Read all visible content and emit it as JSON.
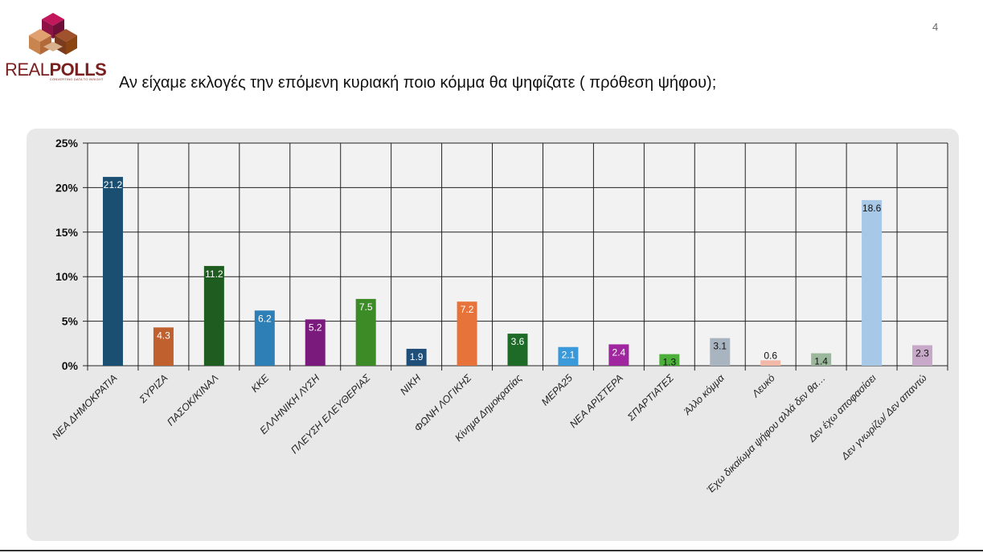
{
  "page_number": "4",
  "logo": {
    "text_light": "REAL",
    "text_bold": "POLLS",
    "tagline": "CONVERTING DATA TO INSIGHT"
  },
  "question": "Αν είχαμε εκλογές την επόμενη κυριακή ποιο κόμμα θα ψηφίζατε ( πρόθεση ψήφου);",
  "chart_data": {
    "type": "bar",
    "title": "",
    "xlabel": "",
    "ylabel": "",
    "ylim": [
      0,
      25
    ],
    "yticks": [
      "0%",
      "5%",
      "10%",
      "15%",
      "20%",
      "25%"
    ],
    "grid": true,
    "legend": "none",
    "categories": [
      "ΝΕΑ ΔΗΜΟΚΡΑΤΙΑ",
      "ΣΥΡΙΖΑ",
      "ΠΑΣΟΚ/ΚΙΝΑΛ",
      "ΚΚΕ",
      "ΕΛΛΗΝΙΚΗ ΛΥΣΗ",
      "ΠΛΕΥΣΗ ΕΛΕΥΘΕΡΙΑΣ",
      "ΝΙΚΗ",
      "ΦΩΝΗ ΛΟΓΙΚΗΣ",
      "Κίνημα Δημοκρατίας",
      "ΜΕΡΑ25",
      "ΝΕΑ ΑΡΙΣΤΕΡΑ",
      "ΣΠΑΡΤΙΑΤΕΣ",
      "Άλλο κόμμα",
      "Λευκό",
      "Έχω δικαίωμα ψήφου αλλά δεν θα…",
      "Δεν έχω αποφασίσει",
      "Δεν γνωρίζω/ Δεν απαντώ"
    ],
    "values": [
      21.2,
      4.3,
      11.2,
      6.2,
      5.2,
      7.5,
      1.9,
      7.2,
      3.6,
      2.1,
      2.4,
      1.3,
      3.1,
      0.6,
      1.4,
      18.6,
      2.3
    ],
    "labels": [
      "21.2",
      "4.3",
      "11.2",
      "6.2",
      "5.2",
      "7.5",
      "1.9",
      "7.2",
      "3.6",
      "2.1",
      "2.4",
      "1.3",
      "3.1",
      "0.6",
      "1.4",
      "18.6",
      "2.3"
    ],
    "colors": [
      "#1b4f72",
      "#c0602e",
      "#1e5c20",
      "#2e7fb5",
      "#7b1a7d",
      "#3d8b27",
      "#1f4e79",
      "#e8733a",
      "#1e6b28",
      "#3a9ad9",
      "#a026a0",
      "#4caf3a",
      "#a8b4c0",
      "#f2b8a8",
      "#9cb89c",
      "#a8c8e8",
      "#c8a8c8"
    ],
    "label_colors": [
      "#ffffff",
      "#ffffff",
      "#ffffff",
      "#ffffff",
      "#ffffff",
      "#ffffff",
      "#ffffff",
      "#ffffff",
      "#ffffff",
      "#ffffff",
      "#ffffff",
      "#111111",
      "#111111",
      "#111111",
      "#111111",
      "#111111",
      "#111111"
    ]
  }
}
